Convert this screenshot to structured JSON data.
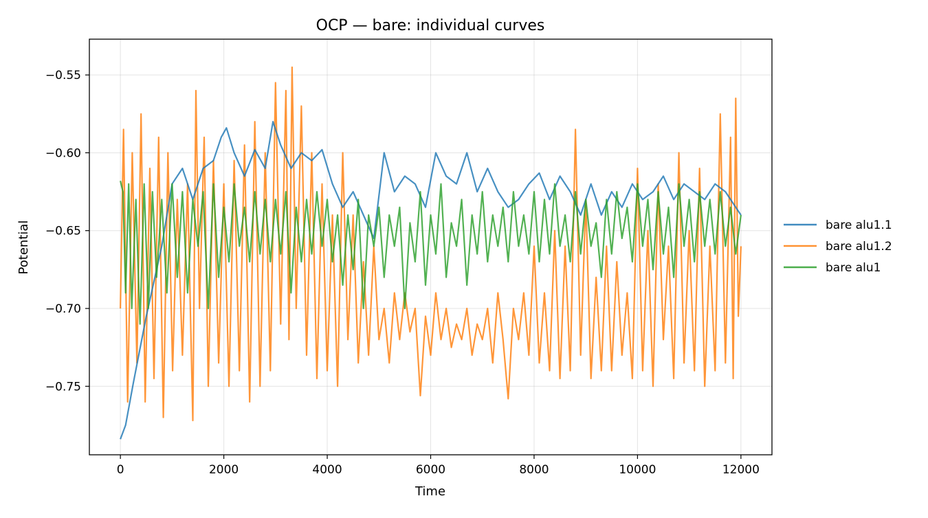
{
  "colors": {
    "bare_alu1_1": "#1f77b4",
    "bare_alu1_2": "#ff7f0e",
    "bare_alu1": "#2ca02c",
    "grid": "#b0b0b0",
    "axes": "#000000"
  },
  "chart_data": {
    "type": "line",
    "title": "OCP — bare: individual curves",
    "xlabel": "Time",
    "ylabel": "Potential",
    "xlim": [
      -600,
      12600
    ],
    "ylim": [
      -0.794,
      -0.527
    ],
    "x_ticks": [
      0,
      2000,
      4000,
      6000,
      8000,
      10000,
      12000
    ],
    "x_tick_labels": [
      "0",
      "2000",
      "4000",
      "6000",
      "8000",
      "10000",
      "12000"
    ],
    "y_ticks": [
      -0.55,
      -0.6,
      -0.65,
      -0.7,
      -0.75
    ],
    "y_tick_labels": [
      "−0.55",
      "−0.60",
      "−0.65",
      "−0.70",
      "−0.75"
    ],
    "grid": true,
    "legend_position": "right-outside",
    "series": [
      {
        "name": "bare alu1.1",
        "color_key": "bare_alu1_1",
        "x": [
          0,
          100,
          250,
          500,
          800,
          1000,
          1200,
          1400,
          1600,
          1800,
          1950,
          2050,
          2200,
          2400,
          2600,
          2800,
          2950,
          3100,
          3300,
          3500,
          3700,
          3900,
          4100,
          4300,
          4500,
          4700,
          4900,
          5100,
          5300,
          5500,
          5700,
          5900,
          6100,
          6300,
          6500,
          6700,
          6900,
          7100,
          7300,
          7500,
          7700,
          7900,
          8100,
          8300,
          8500,
          8700,
          8900,
          9100,
          9300,
          9500,
          9700,
          9900,
          10100,
          10300,
          10500,
          10700,
          10900,
          11100,
          11300,
          11500,
          11700,
          11900,
          12000
        ],
        "y": [
          -0.784,
          -0.775,
          -0.748,
          -0.705,
          -0.66,
          -0.62,
          -0.61,
          -0.63,
          -0.61,
          -0.605,
          -0.59,
          -0.584,
          -0.6,
          -0.615,
          -0.598,
          -0.61,
          -0.58,
          -0.595,
          -0.61,
          -0.6,
          -0.605,
          -0.598,
          -0.62,
          -0.635,
          -0.625,
          -0.64,
          -0.655,
          -0.6,
          -0.625,
          -0.615,
          -0.62,
          -0.635,
          -0.6,
          -0.615,
          -0.62,
          -0.6,
          -0.625,
          -0.61,
          -0.625,
          -0.635,
          -0.63,
          -0.62,
          -0.613,
          -0.63,
          -0.615,
          -0.625,
          -0.64,
          -0.62,
          -0.64,
          -0.625,
          -0.635,
          -0.62,
          -0.63,
          -0.625,
          -0.615,
          -0.63,
          -0.62,
          -0.625,
          -0.63,
          -0.62,
          -0.625,
          -0.635,
          -0.64
        ]
      },
      {
        "name": "bare alu1.2",
        "color_key": "bare_alu1_2",
        "x": [
          0,
          60,
          140,
          230,
          320,
          400,
          480,
          570,
          650,
          740,
          830,
          920,
          1010,
          1100,
          1200,
          1300,
          1400,
          1460,
          1530,
          1620,
          1700,
          1800,
          1900,
          2000,
          2100,
          2200,
          2300,
          2400,
          2500,
          2600,
          2700,
          2800,
          2900,
          3000,
          3100,
          3200,
          3260,
          3320,
          3400,
          3500,
          3600,
          3700,
          3800,
          3900,
          4000,
          4100,
          4200,
          4300,
          4400,
          4500,
          4600,
          4700,
          4800,
          4900,
          5000,
          5100,
          5200,
          5300,
          5400,
          5500,
          5600,
          5700,
          5800,
          5900,
          6000,
          6100,
          6200,
          6300,
          6400,
          6500,
          6600,
          6700,
          6800,
          6900,
          7000,
          7100,
          7200,
          7300,
          7400,
          7500,
          7600,
          7700,
          7800,
          7900,
          8000,
          8100,
          8200,
          8300,
          8400,
          8500,
          8600,
          8700,
          8800,
          8900,
          9000,
          9100,
          9200,
          9300,
          9400,
          9500,
          9600,
          9700,
          9800,
          9900,
          10000,
          10100,
          10200,
          10300,
          10400,
          10500,
          10600,
          10700,
          10800,
          10900,
          11000,
          11100,
          11200,
          11300,
          11400,
          11500,
          11600,
          11700,
          11800,
          11850,
          11900,
          11950,
          12000
        ],
        "y": [
          -0.7,
          -0.585,
          -0.76,
          -0.6,
          -0.735,
          -0.575,
          -0.76,
          -0.61,
          -0.745,
          -0.59,
          -0.77,
          -0.6,
          -0.74,
          -0.63,
          -0.73,
          -0.62,
          -0.772,
          -0.56,
          -0.7,
          -0.59,
          -0.75,
          -0.605,
          -0.735,
          -0.62,
          -0.75,
          -0.605,
          -0.74,
          -0.595,
          -0.76,
          -0.58,
          -0.75,
          -0.6,
          -0.74,
          -0.555,
          -0.71,
          -0.56,
          -0.72,
          -0.545,
          -0.7,
          -0.57,
          -0.73,
          -0.6,
          -0.745,
          -0.62,
          -0.74,
          -0.64,
          -0.75,
          -0.6,
          -0.72,
          -0.64,
          -0.735,
          -0.67,
          -0.73,
          -0.66,
          -0.72,
          -0.7,
          -0.735,
          -0.69,
          -0.72,
          -0.69,
          -0.715,
          -0.7,
          -0.756,
          -0.705,
          -0.73,
          -0.69,
          -0.72,
          -0.7,
          -0.725,
          -0.71,
          -0.72,
          -0.7,
          -0.73,
          -0.71,
          -0.72,
          -0.7,
          -0.735,
          -0.69,
          -0.72,
          -0.758,
          -0.7,
          -0.72,
          -0.69,
          -0.73,
          -0.66,
          -0.735,
          -0.69,
          -0.74,
          -0.65,
          -0.745,
          -0.66,
          -0.74,
          -0.585,
          -0.73,
          -0.63,
          -0.745,
          -0.68,
          -0.74,
          -0.66,
          -0.74,
          -0.67,
          -0.73,
          -0.69,
          -0.745,
          -0.61,
          -0.74,
          -0.65,
          -0.75,
          -0.62,
          -0.72,
          -0.66,
          -0.745,
          -0.6,
          -0.735,
          -0.65,
          -0.74,
          -0.61,
          -0.75,
          -0.66,
          -0.74,
          -0.575,
          -0.735,
          -0.59,
          -0.745,
          -0.565,
          -0.705,
          -0.66
        ]
      },
      {
        "name": "bare alu1",
        "color_key": "bare_alu1",
        "x": [
          0,
          50,
          100,
          160,
          220,
          300,
          380,
          460,
          540,
          620,
          700,
          800,
          900,
          1000,
          1100,
          1200,
          1300,
          1400,
          1500,
          1600,
          1700,
          1800,
          1900,
          2000,
          2100,
          2200,
          2300,
          2400,
          2500,
          2600,
          2700,
          2800,
          2900,
          3000,
          3100,
          3200,
          3300,
          3400,
          3500,
          3600,
          3700,
          3800,
          3900,
          4000,
          4100,
          4200,
          4300,
          4400,
          4500,
          4600,
          4700,
          4800,
          4900,
          5000,
          5100,
          5200,
          5300,
          5400,
          5500,
          5600,
          5700,
          5800,
          5900,
          6000,
          6100,
          6200,
          6300,
          6400,
          6500,
          6600,
          6700,
          6800,
          6900,
          7000,
          7100,
          7200,
          7300,
          7400,
          7500,
          7600,
          7700,
          7800,
          7900,
          8000,
          8100,
          8200,
          8300,
          8400,
          8500,
          8600,
          8700,
          8800,
          8900,
          9000,
          9100,
          9200,
          9300,
          9400,
          9500,
          9600,
          9700,
          9800,
          9900,
          10000,
          10100,
          10200,
          10300,
          10400,
          10500,
          10600,
          10700,
          10800,
          10900,
          11000,
          11100,
          11200,
          11300,
          11400,
          11500,
          11600,
          11700,
          11800,
          11900,
          12000
        ],
        "y": [
          -0.618,
          -0.625,
          -0.69,
          -0.62,
          -0.7,
          -0.63,
          -0.71,
          -0.62,
          -0.7,
          -0.625,
          -0.68,
          -0.63,
          -0.69,
          -0.62,
          -0.68,
          -0.625,
          -0.69,
          -0.63,
          -0.66,
          -0.625,
          -0.7,
          -0.62,
          -0.68,
          -0.635,
          -0.67,
          -0.62,
          -0.66,
          -0.635,
          -0.67,
          -0.625,
          -0.665,
          -0.63,
          -0.67,
          -0.63,
          -0.665,
          -0.625,
          -0.69,
          -0.635,
          -0.67,
          -0.63,
          -0.665,
          -0.625,
          -0.66,
          -0.63,
          -0.67,
          -0.64,
          -0.685,
          -0.64,
          -0.675,
          -0.63,
          -0.7,
          -0.64,
          -0.66,
          -0.635,
          -0.68,
          -0.64,
          -0.66,
          -0.635,
          -0.7,
          -0.645,
          -0.67,
          -0.625,
          -0.685,
          -0.64,
          -0.665,
          -0.62,
          -0.68,
          -0.645,
          -0.66,
          -0.63,
          -0.685,
          -0.64,
          -0.665,
          -0.625,
          -0.67,
          -0.64,
          -0.66,
          -0.635,
          -0.67,
          -0.625,
          -0.66,
          -0.64,
          -0.665,
          -0.625,
          -0.67,
          -0.63,
          -0.665,
          -0.62,
          -0.66,
          -0.64,
          -0.67,
          -0.625,
          -0.665,
          -0.63,
          -0.66,
          -0.645,
          -0.68,
          -0.63,
          -0.665,
          -0.625,
          -0.655,
          -0.635,
          -0.67,
          -0.62,
          -0.66,
          -0.63,
          -0.675,
          -0.625,
          -0.665,
          -0.635,
          -0.68,
          -0.62,
          -0.66,
          -0.63,
          -0.67,
          -0.625,
          -0.66,
          -0.63,
          -0.665,
          -0.625,
          -0.66,
          -0.635,
          -0.665,
          -0.64
        ]
      }
    ]
  }
}
